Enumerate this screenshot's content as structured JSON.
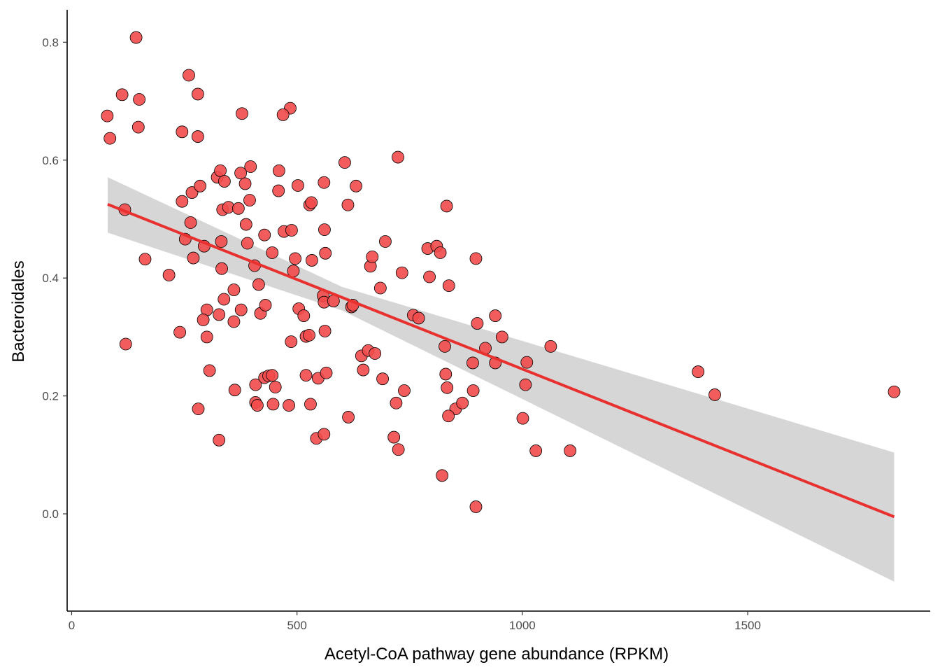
{
  "chart_data": {
    "type": "scatter",
    "title": "",
    "xlabel": "Acetyl-CoA pathway gene abundance (RPKM)",
    "ylabel": "Bacteroidales",
    "xlim": [
      -10,
      1905
    ],
    "ylim": [
      -0.165,
      0.855
    ],
    "x_ticks": [
      {
        "value": 0,
        "label": "0"
      },
      {
        "value": 500,
        "label": "500"
      },
      {
        "value": 1000,
        "label": "1000"
      },
      {
        "value": 1500,
        "label": "1500"
      }
    ],
    "y_ticks": [
      {
        "value": 0.0,
        "label": "0.0"
      },
      {
        "value": 0.2,
        "label": "0.2"
      },
      {
        "value": 0.4,
        "label": "0.4"
      },
      {
        "value": 0.6,
        "label": "0.6"
      },
      {
        "value": 0.8,
        "label": "0.8"
      }
    ],
    "grid": false,
    "legend": "none",
    "colors": {
      "point_fill": "#f24a4a",
      "point_stroke": "#000000",
      "trend_line": "#e8302f",
      "confidence_band": "#d6d6d6",
      "axis": "#000000",
      "tick_text": "#4d4d4d"
    },
    "trend": {
      "method": "linear",
      "x": [
        80,
        1825
      ],
      "y": [
        0.525,
        -0.005
      ],
      "ci_lower": [
        0.477,
        -0.115
      ],
      "ci_upper": [
        0.571,
        0.104
      ],
      "ci_mid_x": 600,
      "ci_mid_lower": 0.345,
      "ci_mid_upper": 0.385
    },
    "points": [
      [
        143,
        0.808
      ],
      [
        79,
        0.675
      ],
      [
        85,
        0.637
      ],
      [
        112,
        0.711
      ],
      [
        150,
        0.703
      ],
      [
        148,
        0.656
      ],
      [
        260,
        0.744
      ],
      [
        280,
        0.712
      ],
      [
        245,
        0.648
      ],
      [
        280,
        0.64
      ],
      [
        378,
        0.679
      ],
      [
        485,
        0.688
      ],
      [
        469,
        0.677
      ],
      [
        724,
        0.605
      ],
      [
        606,
        0.596
      ],
      [
        118,
        0.516
      ],
      [
        163,
        0.432
      ],
      [
        216,
        0.405
      ],
      [
        245,
        0.53
      ],
      [
        252,
        0.466
      ],
      [
        264,
        0.494
      ],
      [
        267,
        0.545
      ],
      [
        270,
        0.434
      ],
      [
        285,
        0.556
      ],
      [
        294,
        0.454
      ],
      [
        240,
        0.308
      ],
      [
        120,
        0.288
      ],
      [
        300,
        0.346
      ],
      [
        292,
        0.329
      ],
      [
        300,
        0.3
      ],
      [
        323,
        0.571
      ],
      [
        330,
        0.582
      ],
      [
        339,
        0.564
      ],
      [
        335,
        0.516
      ],
      [
        348,
        0.52
      ],
      [
        370,
        0.518
      ],
      [
        375,
        0.578
      ],
      [
        385,
        0.56
      ],
      [
        397,
        0.589
      ],
      [
        395,
        0.532
      ],
      [
        387,
        0.491
      ],
      [
        390,
        0.459
      ],
      [
        332,
        0.462
      ],
      [
        333,
        0.416
      ],
      [
        406,
        0.421
      ],
      [
        360,
        0.38
      ],
      [
        338,
        0.364
      ],
      [
        327,
        0.338
      ],
      [
        360,
        0.326
      ],
      [
        376,
        0.346
      ],
      [
        415,
        0.389
      ],
      [
        428,
        0.473
      ],
      [
        445,
        0.443
      ],
      [
        460,
        0.582
      ],
      [
        459,
        0.548
      ],
      [
        471,
        0.479
      ],
      [
        488,
        0.481
      ],
      [
        496,
        0.433
      ],
      [
        492,
        0.412
      ],
      [
        502,
        0.557
      ],
      [
        419,
        0.34
      ],
      [
        430,
        0.354
      ],
      [
        504,
        0.348
      ],
      [
        515,
        0.336
      ],
      [
        487,
        0.292
      ],
      [
        528,
        0.524
      ],
      [
        532,
        0.528
      ],
      [
        560,
        0.562
      ],
      [
        561,
        0.482
      ],
      [
        563,
        0.442
      ],
      [
        533,
        0.43
      ],
      [
        558,
        0.37
      ],
      [
        560,
        0.359
      ],
      [
        581,
        0.361
      ],
      [
        562,
        0.31
      ],
      [
        520,
        0.301
      ],
      [
        527,
        0.303
      ],
      [
        621,
        0.351
      ],
      [
        624,
        0.354
      ],
      [
        613,
        0.524
      ],
      [
        631,
        0.556
      ],
      [
        663,
        0.42
      ],
      [
        667,
        0.436
      ],
      [
        696,
        0.462
      ],
      [
        685,
        0.383
      ],
      [
        733,
        0.409
      ],
      [
        758,
        0.337
      ],
      [
        770,
        0.332
      ],
      [
        790,
        0.45
      ],
      [
        810,
        0.454
      ],
      [
        818,
        0.443
      ],
      [
        832,
        0.522
      ],
      [
        794,
        0.402
      ],
      [
        837,
        0.387
      ],
      [
        897,
        0.433
      ],
      [
        940,
        0.336
      ],
      [
        955,
        0.3
      ],
      [
        900,
        0.323
      ],
      [
        918,
        0.281
      ],
      [
        890,
        0.256
      ],
      [
        940,
        0.256
      ],
      [
        828,
        0.284
      ],
      [
        1063,
        0.284
      ],
      [
        1010,
        0.257
      ],
      [
        1007,
        0.219
      ],
      [
        1390,
        0.241
      ],
      [
        1427,
        0.202
      ],
      [
        1825,
        0.207
      ],
      [
        306,
        0.243
      ],
      [
        281,
        0.178
      ],
      [
        327,
        0.125
      ],
      [
        362,
        0.21
      ],
      [
        408,
        0.219
      ],
      [
        408,
        0.189
      ],
      [
        412,
        0.184
      ],
      [
        428,
        0.231
      ],
      [
        437,
        0.234
      ],
      [
        445,
        0.235
      ],
      [
        452,
        0.215
      ],
      [
        447,
        0.186
      ],
      [
        482,
        0.184
      ],
      [
        520,
        0.235
      ],
      [
        530,
        0.186
      ],
      [
        547,
        0.23
      ],
      [
        565,
        0.239
      ],
      [
        543,
        0.128
      ],
      [
        560,
        0.135
      ],
      [
        614,
        0.164
      ],
      [
        643,
        0.268
      ],
      [
        658,
        0.277
      ],
      [
        673,
        0.272
      ],
      [
        647,
        0.244
      ],
      [
        690,
        0.229
      ],
      [
        720,
        0.188
      ],
      [
        738,
        0.209
      ],
      [
        715,
        0.13
      ],
      [
        725,
        0.109
      ],
      [
        830,
        0.237
      ],
      [
        833,
        0.214
      ],
      [
        852,
        0.178
      ],
      [
        867,
        0.188
      ],
      [
        891,
        0.209
      ],
      [
        836,
        0.166
      ],
      [
        1001,
        0.162
      ],
      [
        1030,
        0.107
      ],
      [
        1106,
        0.107
      ],
      [
        822,
        0.065
      ],
      [
        897,
        0.012
      ]
    ]
  }
}
